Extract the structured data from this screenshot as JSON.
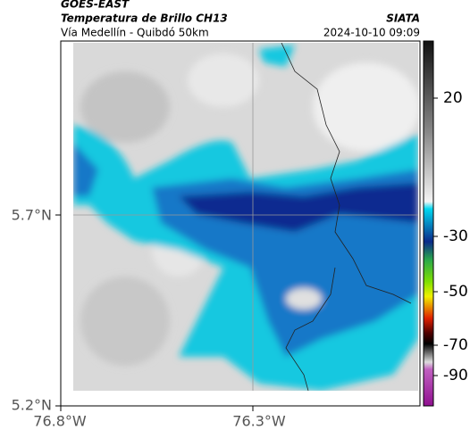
{
  "header": {
    "title": "GOES-EAST",
    "subtitle": "Temperatura de Brillo CH13",
    "route": "Vía Medellín - Quibdó 50km",
    "source": "SIATA",
    "datetime": "2024-10-10 09:09"
  },
  "axes": {
    "lat_labels": [
      "5.7°N",
      "5.2°N"
    ],
    "lon_labels": [
      "76.8°W",
      "76.3°W"
    ]
  },
  "colorbar": {
    "labels": [
      "20",
      "-30",
      "-50",
      "-70",
      "-90"
    ]
  }
}
